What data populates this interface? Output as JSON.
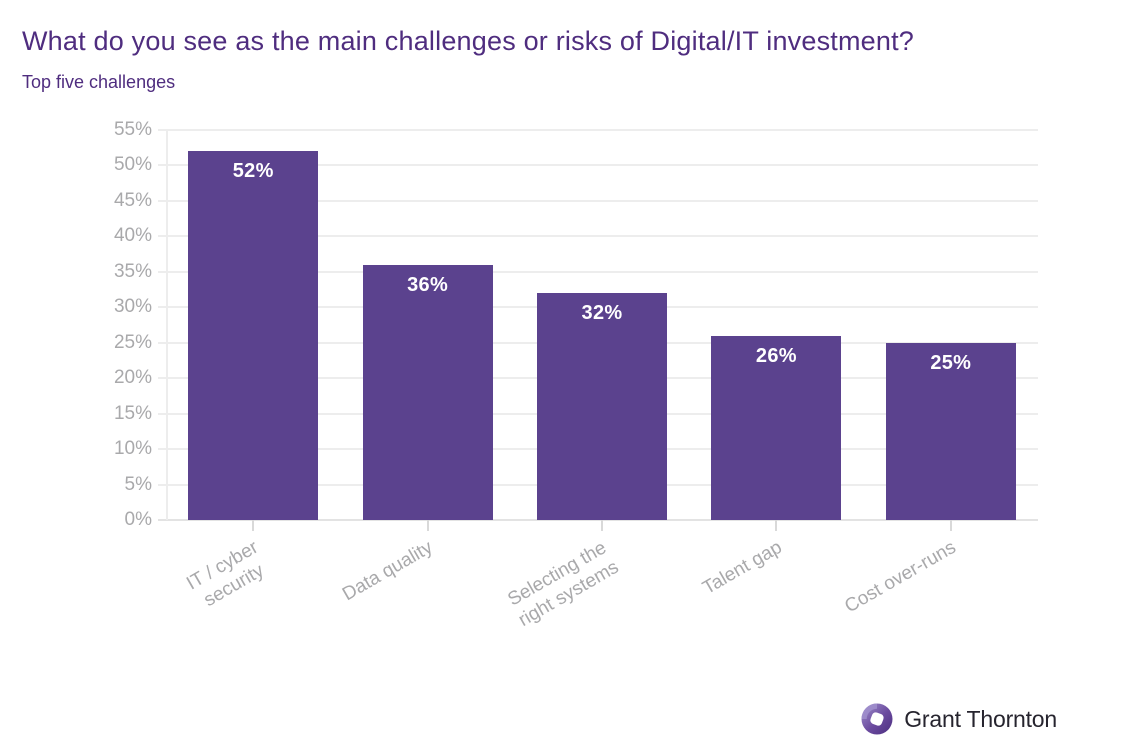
{
  "header": {
    "title": "What do you see as the main challenges or risks of Digital/IT investment?",
    "subtitle": "Top five challenges",
    "title_color": "#4f2d7f"
  },
  "chart_data": {
    "type": "bar",
    "title": "What do you see as the main challenges or risks of Digital/IT investment?",
    "subtitle": "Top five challenges",
    "categories": [
      "IT / cyber\nsecurity",
      "Data quality",
      "Selecting the\nright systems",
      "Talent gap",
      "Cost over-runs"
    ],
    "values": [
      52,
      36,
      32,
      26,
      25
    ],
    "value_suffix": "%",
    "value_labels": [
      "52%",
      "36%",
      "32%",
      "26%",
      "25%"
    ],
    "ylim": [
      0,
      55
    ],
    "ytick_step": 5,
    "ytick_suffix": "%",
    "ytick_labels": [
      "0%",
      "5%",
      "10%",
      "15%",
      "20%",
      "25%",
      "30%",
      "35%",
      "40%",
      "45%",
      "50%",
      "55%"
    ],
    "grid": true,
    "legend": "none",
    "x_label_rotation_deg": -30,
    "colors": {
      "bar": "#5b428e",
      "bar_value_text": "#ffffff",
      "axis_text": "#a9a9ab",
      "gridline": "#ededed",
      "baseline": "#e3e3e3"
    }
  },
  "footer": {
    "logo_text": "Grant Thornton",
    "logo_icon": "grant-thornton-swirl-icon",
    "logo_colors": {
      "purple_dark": "#4b2d7f",
      "purple_mid": "#6a4a9e",
      "purple_light": "#a394cf",
      "text": "#26242e"
    }
  }
}
